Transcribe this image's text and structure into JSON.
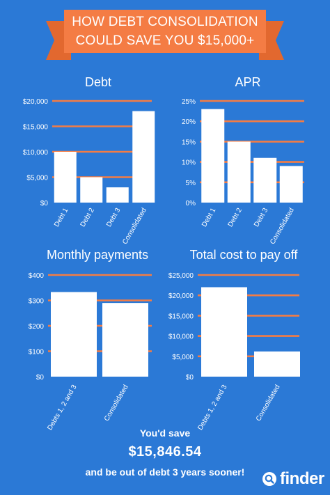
{
  "banner": {
    "title_line1": "HOW DEBT CONSOLIDATION",
    "title_line2": "COULD SAVE YOU $15,000+"
  },
  "footer": {
    "line1": "You'd save",
    "amount": "$15,846.54",
    "line2": "and be out of debt 3 years sooner!",
    "logo": "finder"
  },
  "colors": {
    "background": "#2b79d6",
    "accent_orange": "#f47c44",
    "bar": "#ffffff",
    "text": "#ffffff"
  },
  "chart_data": [
    {
      "type": "bar",
      "title": "Debt",
      "categories": [
        "Debt 1",
        "Debt 2",
        "Debt 3",
        "Consolidated"
      ],
      "values": [
        10000,
        5000,
        3000,
        18000
      ],
      "yticks": [
        "$0",
        "$5,000",
        "$10,000",
        "$15,000",
        "$20,000"
      ],
      "ylim": [
        0,
        20000
      ],
      "grid": true
    },
    {
      "type": "bar",
      "title": "APR",
      "categories": [
        "Debt 1",
        "Debt 2",
        "Debt 3",
        "Consolidated"
      ],
      "values": [
        23,
        15,
        11,
        9
      ],
      "yticks": [
        "0%",
        "5%",
        "10%",
        "15%",
        "20%",
        "25%"
      ],
      "ylim": [
        0,
        25
      ],
      "grid": true
    },
    {
      "type": "bar",
      "title": "Monthly payments",
      "categories": [
        "Debts 1, 2 and 3",
        "Consolidated"
      ],
      "values": [
        333,
        290
      ],
      "yticks": [
        "$0",
        "$100",
        "$200",
        "$300",
        "$400"
      ],
      "ylim": [
        0,
        400
      ],
      "grid": true
    },
    {
      "type": "bar",
      "title": "Total cost to pay off",
      "categories": [
        "Debts 1, 2 and 3",
        "Consolidated"
      ],
      "values": [
        22000,
        6200
      ],
      "yticks": [
        "$0",
        "$5,000",
        "$10,000",
        "$15,000",
        "$20,000",
        "$25,000"
      ],
      "ylim": [
        0,
        25000
      ],
      "grid": true
    }
  ]
}
